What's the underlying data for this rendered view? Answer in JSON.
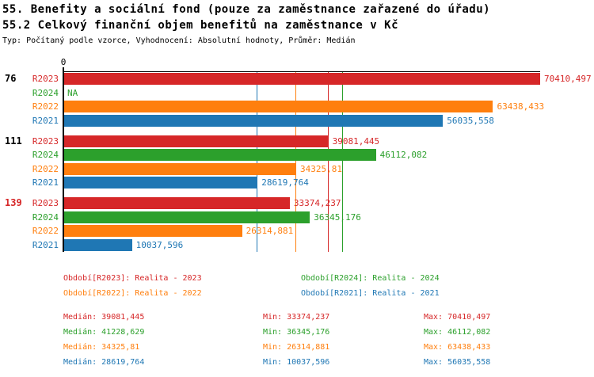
{
  "header": {
    "title1": "55. Benefity a sociální fond (pouze za zaměstnance zařazené do úřadu)",
    "title2": "55.2 Celkový finanční objem benefitů na zaměstnance v Kč",
    "subtitle": "Typ: Počítaný podle vzorce, Vyhodnocení: Absolutní hodnoty, Průměr: Medián"
  },
  "colors": {
    "R2023": "#d62728",
    "R2024": "#2ca02c",
    "R2022": "#ff7f0e",
    "R2021": "#1f77b4",
    "axis": "#000000",
    "highlight_group": "#d62728"
  },
  "chart_data": {
    "type": "bar",
    "orientation": "horizontal",
    "title": "55.2 Celkový finanční objem benefitů na zaměstnance v Kč",
    "xlabel": "",
    "ylabel": "",
    "xlim": [
      0,
      70410.497
    ],
    "origin_tick_label": "0",
    "series_order": [
      "R2023",
      "R2024",
      "R2022",
      "R2021"
    ],
    "groups": [
      {
        "label": "76",
        "label_color": "#000000",
        "bars": [
          {
            "series": "R2023",
            "value": 70410.497,
            "value_label": "70410,497"
          },
          {
            "series": "R2024",
            "value": null,
            "value_label": "NA"
          },
          {
            "series": "R2022",
            "value": 63438.433,
            "value_label": "63438,433"
          },
          {
            "series": "R2021",
            "value": 56035.558,
            "value_label": "56035,558"
          }
        ]
      },
      {
        "label": "111",
        "label_color": "#000000",
        "bars": [
          {
            "series": "R2023",
            "value": 39081.445,
            "value_label": "39081,445"
          },
          {
            "series": "R2024",
            "value": 46112.082,
            "value_label": "46112,082"
          },
          {
            "series": "R2022",
            "value": 34325.81,
            "value_label": "34325,81"
          },
          {
            "series": "R2021",
            "value": 28619.764,
            "value_label": "28619,764"
          }
        ]
      },
      {
        "label": "139",
        "label_color": "#d62728",
        "bars": [
          {
            "series": "R2023",
            "value": 33374.237,
            "value_label": "33374,237"
          },
          {
            "series": "R2024",
            "value": 36345.176,
            "value_label": "36345,176"
          },
          {
            "series": "R2022",
            "value": 26314.881,
            "value_label": "26314,881"
          },
          {
            "series": "R2021",
            "value": 10037.596,
            "value_label": "10037,596"
          }
        ]
      }
    ],
    "median_lines": [
      {
        "series": "R2023",
        "value": 39081.445
      },
      {
        "series": "R2024",
        "value": 41228.629
      },
      {
        "series": "R2022",
        "value": 34325.81
      },
      {
        "series": "R2021",
        "value": 28619.764
      }
    ]
  },
  "legend": [
    {
      "series": "R2023",
      "row": 0,
      "col": 0,
      "text": "Období[R2023]: Realita - 2023"
    },
    {
      "series": "R2024",
      "row": 0,
      "col": 1,
      "text": "Období[R2024]: Realita - 2024"
    },
    {
      "series": "R2022",
      "row": 1,
      "col": 0,
      "text": "Období[R2022]: Realita - 2022"
    },
    {
      "series": "R2021",
      "row": 1,
      "col": 1,
      "text": "Období[R2021]: Realita - 2021"
    }
  ],
  "stats": [
    {
      "series": "R2023",
      "median": "Medián: 39081,445",
      "min": "Min: 33374,237",
      "max": "Max: 70410,497"
    },
    {
      "series": "R2024",
      "median": "Medián: 41228,629",
      "min": "Min: 36345,176",
      "max": "Max: 46112,082"
    },
    {
      "series": "R2022",
      "median": "Medián: 34325,81",
      "min": "Min: 26314,881",
      "max": "Max: 63438,433"
    },
    {
      "series": "R2021",
      "median": "Medián: 28619,764",
      "min": "Min: 10037,596",
      "max": "Max: 56035,558"
    }
  ]
}
